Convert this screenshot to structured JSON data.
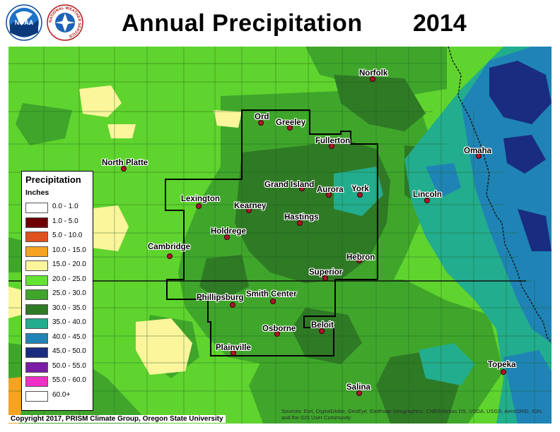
{
  "title": "Annual Precipitation",
  "year": "2014",
  "legend": {
    "title": "Precipitation",
    "units": "Inches",
    "items": [
      {
        "range": "0.0 - 1.0",
        "color": "#ffffff"
      },
      {
        "range": "1.0 - 5.0",
        "color": "#6e0000"
      },
      {
        "range": "5.0 - 10.0",
        "color": "#e0501c"
      },
      {
        "range": "10.0 - 15.0",
        "color": "#f6a321"
      },
      {
        "range": "15.0 - 20.0",
        "color": "#fbf59c"
      },
      {
        "range": "20.0 - 25.0",
        "color": "#63e332"
      },
      {
        "range": "25.0 - 30.0",
        "color": "#3fa62b"
      },
      {
        "range": "30.0 - 35.0",
        "color": "#2f7a25"
      },
      {
        "range": "35.0 - 40.0",
        "color": "#22ad8e"
      },
      {
        "range": "40.0 - 45.0",
        "color": "#1f84b5"
      },
      {
        "range": "45.0 - 50.0",
        "color": "#1a2c80"
      },
      {
        "range": "50.0 - 55.0",
        "color": "#7a1ca6"
      },
      {
        "range": "55.0 - 60.0",
        "color": "#ef2fc6"
      },
      {
        "range": "60.0+",
        "color": "#ffffff"
      }
    ]
  },
  "cities": [
    {
      "name": "Norfolk"
    },
    {
      "name": "Ord"
    },
    {
      "name": "Greeley"
    },
    {
      "name": "Fullerton"
    },
    {
      "name": "North Platte"
    },
    {
      "name": "Omaha"
    },
    {
      "name": "Grand Island"
    },
    {
      "name": "Aurora"
    },
    {
      "name": "York"
    },
    {
      "name": "Lincoln"
    },
    {
      "name": "Lexington"
    },
    {
      "name": "Kearney"
    },
    {
      "name": "Hastings"
    },
    {
      "name": "Holdrege"
    },
    {
      "name": "Cambridge"
    },
    {
      "name": "Hebron"
    },
    {
      "name": "Superior"
    },
    {
      "name": "Phillipsburg"
    },
    {
      "name": "Smith Center"
    },
    {
      "name": "Osborne"
    },
    {
      "name": "Beloit"
    },
    {
      "name": "Plainville"
    },
    {
      "name": "Topeka"
    },
    {
      "name": "Salina"
    }
  ],
  "logos": {
    "noaa": "NOAA",
    "nws": "NATIONAL WEATHER SERVICE"
  },
  "copyright": "Copyright 2017, PRISM Climate Group, Oregon State University",
  "attribution": "Sources: Esri, DigitalGlobe, GeoEye, Earthstar Geographics, CNES/Airbus DS, USDA, USGS, AeroGRID, IGN, and the GIS User Community"
}
